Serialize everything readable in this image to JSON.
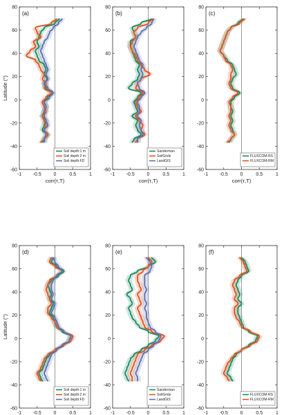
{
  "colors": {
    "green": "#1a8a5e",
    "orange": "#e0521f",
    "blue": "#5a6fb0"
  },
  "chart_data": [
    {
      "type": "line",
      "panel_label": "(a)",
      "xlabel": "corr(τ,T)",
      "ylabel": "Latitude (°)",
      "xlim": [
        -1,
        1
      ],
      "ylim": [
        -60,
        80
      ],
      "xticks": [
        "-1",
        "-0.5",
        "0",
        "0.5",
        "1"
      ],
      "yticks": [
        "-60",
        "-40",
        "-20",
        "0",
        "20",
        "40",
        "60",
        "80"
      ],
      "lat": [
        70,
        66,
        62,
        58,
        54,
        50,
        46,
        42,
        38,
        34,
        30,
        26,
        22,
        18,
        14,
        10,
        6,
        2,
        -2,
        -6,
        -10,
        -14,
        -18,
        -22,
        -26,
        -30,
        -34,
        -37
      ],
      "series": [
        {
          "name": "Soil depth:1 m",
          "color": "green",
          "x": [
            0.12,
            0.0,
            -0.3,
            -0.4,
            -0.45,
            -0.5,
            -0.45,
            -0.55,
            -0.5,
            -0.45,
            -0.3,
            -0.25,
            -0.3,
            -0.22,
            -0.3,
            -0.25,
            -0.1,
            -0.2,
            -0.3,
            -0.25,
            -0.3,
            -0.35,
            -0.25,
            -0.3,
            -0.35,
            -0.2,
            -0.3,
            -0.35
          ]
        },
        {
          "name": "Soil depth:2 m",
          "color": "orange",
          "x": [
            0.05,
            -0.1,
            -0.55,
            -0.5,
            -0.4,
            -0.6,
            -0.55,
            -0.7,
            -0.8,
            -0.55,
            -0.45,
            -0.4,
            -0.3,
            -0.35,
            -0.25,
            -0.3,
            -0.1,
            -0.25,
            -0.35,
            -0.3,
            -0.25,
            -0.35,
            -0.3,
            -0.25,
            -0.3,
            -0.2,
            -0.3,
            -0.4
          ]
        },
        {
          "name": "Soil depth:FD",
          "color": "blue",
          "x": [
            0.2,
            0.1,
            -0.05,
            -0.15,
            -0.2,
            -0.3,
            -0.35,
            -0.4,
            -0.35,
            -0.3,
            -0.25,
            -0.2,
            -0.25,
            -0.2,
            -0.3,
            -0.2,
            -0.05,
            -0.15,
            -0.3,
            -0.25,
            -0.3,
            -0.3,
            -0.25,
            -0.2,
            -0.3,
            -0.25,
            -0.3,
            -0.3
          ]
        }
      ],
      "legend_loc": "bottom-right"
    },
    {
      "type": "line",
      "panel_label": "(b)",
      "xlabel": "corr(τ,T)",
      "ylabel": "",
      "xlim": [
        -1,
        1
      ],
      "ylim": [
        -60,
        80
      ],
      "xticks": [
        "-1",
        "-0.5",
        "0",
        "0.5",
        "1"
      ],
      "yticks": [
        "-60",
        "-40",
        "-20",
        "0",
        "20",
        "40",
        "60",
        "80"
      ],
      "lat": [
        70,
        66,
        62,
        58,
        54,
        50,
        46,
        42,
        38,
        34,
        30,
        26,
        22,
        18,
        14,
        10,
        6,
        2,
        -2,
        -6,
        -10,
        -14,
        -18,
        -22,
        -26,
        -30,
        -34,
        -37
      ],
      "series": [
        {
          "name": "Sanderman",
          "color": "green",
          "x": [
            0.1,
            -0.2,
            -0.45,
            -0.4,
            -0.35,
            -0.5,
            -0.5,
            -0.45,
            -0.4,
            -0.35,
            -0.25,
            -0.3,
            -0.25,
            -0.3,
            -0.45,
            -0.55,
            -0.2,
            -0.3,
            -0.4,
            -0.35,
            -0.3,
            -0.45,
            -0.3,
            -0.35,
            -0.3,
            -0.2,
            -0.4,
            -0.45
          ]
        },
        {
          "name": "SoilGrids",
          "color": "orange",
          "x": [
            0.12,
            0.0,
            -0.3,
            -0.4,
            -0.35,
            -0.45,
            -0.5,
            -0.45,
            -0.35,
            -0.3,
            -0.2,
            -0.1,
            0.05,
            -0.2,
            -0.3,
            -0.35,
            -0.15,
            -0.25,
            -0.35,
            -0.3,
            -0.2,
            -0.35,
            -0.25,
            -0.15,
            -0.2,
            -0.1,
            -0.3,
            -0.35
          ]
        },
        {
          "name": "LandGIS",
          "color": "blue",
          "x": [
            0.15,
            0.1,
            -0.05,
            -0.2,
            -0.3,
            -0.35,
            -0.4,
            -0.35,
            -0.3,
            -0.25,
            -0.15,
            -0.2,
            -0.15,
            -0.2,
            -0.3,
            -0.25,
            -0.1,
            -0.2,
            -0.3,
            -0.25,
            -0.25,
            -0.3,
            -0.2,
            -0.25,
            -0.2,
            -0.15,
            -0.3,
            -0.3
          ]
        }
      ],
      "legend_loc": "bottom-right"
    },
    {
      "type": "line",
      "panel_label": "(c)",
      "xlabel": "corr(τ,T)",
      "ylabel": "",
      "xlim": [
        -1,
        1
      ],
      "ylim": [
        -60,
        80
      ],
      "xticks": [
        "-1",
        "-0.5",
        "0",
        "0.5",
        "1"
      ],
      "yticks": [
        "-60",
        "-40",
        "-20",
        "0",
        "20",
        "40",
        "60",
        "80"
      ],
      "lat": [
        70,
        66,
        62,
        58,
        54,
        50,
        46,
        42,
        38,
        34,
        30,
        26,
        22,
        18,
        14,
        10,
        6,
        2,
        -2,
        -6,
        -10,
        -14,
        -18,
        -22,
        -26,
        -30,
        -34,
        -37
      ],
      "series": [
        {
          "name": "FLUXCOM-RS",
          "color": "green",
          "x": [
            0.05,
            -0.1,
            -0.3,
            -0.4,
            -0.45,
            -0.5,
            -0.55,
            -0.6,
            -0.5,
            -0.4,
            -0.25,
            -0.2,
            -0.15,
            -0.25,
            -0.3,
            -0.25,
            -0.05,
            -0.2,
            -0.3,
            -0.3,
            -0.25,
            -0.3,
            -0.25,
            -0.3,
            -0.25,
            -0.2,
            -0.3,
            -0.35
          ]
        },
        {
          "name": "FLUXCOM-RM",
          "color": "orange",
          "x": [
            0.08,
            -0.05,
            -0.3,
            -0.4,
            -0.45,
            -0.5,
            -0.55,
            -0.6,
            -0.5,
            -0.45,
            -0.3,
            -0.25,
            -0.3,
            -0.3,
            -0.35,
            -0.3,
            -0.1,
            -0.25,
            -0.35,
            -0.3,
            -0.3,
            -0.35,
            -0.3,
            -0.35,
            -0.3,
            -0.2,
            -0.3,
            -0.4
          ]
        }
      ],
      "legend_loc": "bottom-right"
    },
    {
      "type": "line",
      "panel_label": "(d)",
      "xlabel": "corr(τ,P)",
      "ylabel": "Latitude (°)",
      "xlim": [
        -1,
        1
      ],
      "ylim": [
        -60,
        80
      ],
      "xticks": [
        "-1",
        "-0.5",
        "0",
        "0.5",
        "1"
      ],
      "yticks": [
        "-60",
        "-40",
        "-20",
        "0",
        "20",
        "40",
        "60",
        "80"
      ],
      "lat": [
        70,
        66,
        62,
        58,
        54,
        50,
        46,
        42,
        38,
        34,
        30,
        26,
        22,
        18,
        14,
        10,
        6,
        2,
        -2,
        -6,
        -10,
        -14,
        -18,
        -22,
        -26,
        -30,
        -34,
        -37
      ],
      "series": [
        {
          "name": "Soil depth:1 m",
          "color": "green",
          "x": [
            -0.05,
            -0.1,
            0.05,
            0.25,
            0.1,
            -0.1,
            -0.2,
            -0.15,
            -0.1,
            -0.15,
            -0.05,
            -0.1,
            -0.15,
            -0.05,
            0.0,
            0.05,
            0.2,
            0.45,
            0.4,
            0.2,
            0.0,
            -0.15,
            -0.25,
            -0.3,
            -0.35,
            -0.45,
            -0.4,
            -0.35
          ]
        },
        {
          "name": "Soil depth:2 m",
          "color": "orange",
          "x": [
            -0.1,
            -0.15,
            0.0,
            0.2,
            0.05,
            -0.15,
            -0.2,
            -0.25,
            -0.2,
            -0.15,
            -0.1,
            -0.2,
            -0.2,
            -0.1,
            0.0,
            0.05,
            0.25,
            0.5,
            0.45,
            0.25,
            0.0,
            -0.2,
            -0.3,
            -0.35,
            -0.4,
            -0.5,
            -0.45,
            -0.4
          ]
        },
        {
          "name": "Soil depth:FD",
          "color": "blue",
          "x": [
            -0.05,
            0.0,
            0.1,
            0.2,
            0.05,
            -0.05,
            -0.1,
            -0.1,
            -0.05,
            -0.1,
            0.0,
            -0.05,
            -0.1,
            0.0,
            0.05,
            0.1,
            0.25,
            0.45,
            0.4,
            0.2,
            0.05,
            -0.1,
            -0.15,
            -0.2,
            -0.25,
            -0.3,
            -0.25,
            -0.2
          ]
        }
      ],
      "legend_loc": "bottom-right"
    },
    {
      "type": "line",
      "panel_label": "(e)",
      "xlabel": "corr(τ,P)",
      "ylabel": "",
      "xlim": [
        -1,
        1
      ],
      "ylim": [
        -60,
        80
      ],
      "xticks": [
        "-1",
        "-0.5",
        "0",
        "0.5",
        "1"
      ],
      "yticks": [
        "-60",
        "-40",
        "-20",
        "0",
        "20",
        "40",
        "60",
        "80"
      ],
      "lat": [
        70,
        66,
        62,
        58,
        54,
        50,
        46,
        42,
        38,
        34,
        30,
        26,
        22,
        18,
        14,
        10,
        6,
        2,
        -2,
        -6,
        -10,
        -14,
        -18,
        -22,
        -26,
        -30,
        -34,
        -37
      ],
      "series": [
        {
          "name": "Sanderman",
          "color": "green",
          "x": [
            0.1,
            0.2,
            0.0,
            -0.3,
            -0.5,
            -0.55,
            -0.5,
            -0.45,
            -0.6,
            -0.5,
            -0.45,
            -0.55,
            -0.5,
            -0.45,
            -0.35,
            -0.25,
            0.0,
            0.3,
            0.2,
            0.0,
            -0.2,
            -0.4,
            -0.5,
            -0.55,
            -0.6,
            -0.65,
            -0.6,
            -0.55
          ]
        },
        {
          "name": "SoilGrids",
          "color": "orange",
          "x": [
            0.0,
            0.1,
            0.0,
            -0.15,
            -0.3,
            -0.3,
            -0.25,
            -0.2,
            -0.3,
            -0.25,
            -0.2,
            -0.3,
            -0.25,
            -0.2,
            -0.15,
            -0.1,
            0.1,
            0.45,
            0.35,
            0.1,
            -0.1,
            -0.3,
            -0.35,
            -0.4,
            -0.45,
            -0.5,
            -0.45,
            -0.45
          ]
        },
        {
          "name": "LandGIS",
          "color": "blue",
          "x": [
            -0.05,
            0.05,
            0.1,
            0.05,
            -0.1,
            -0.1,
            -0.1,
            -0.05,
            -0.1,
            -0.1,
            -0.05,
            -0.1,
            -0.05,
            -0.05,
            0.0,
            0.05,
            0.2,
            0.35,
            0.3,
            0.15,
            0.0,
            -0.15,
            -0.2,
            -0.25,
            -0.3,
            -0.35,
            -0.3,
            -0.3
          ]
        }
      ],
      "legend_loc": "bottom-right"
    },
    {
      "type": "line",
      "panel_label": "(f)",
      "xlabel": "corr(τ,P)",
      "ylabel": "",
      "xlim": [
        -1,
        1
      ],
      "ylim": [
        -60,
        80
      ],
      "xticks": [
        "-1",
        "-0.5",
        "0",
        "0.5",
        "1"
      ],
      "yticks": [
        "-60",
        "-40",
        "-20",
        "0",
        "20",
        "40",
        "60",
        "80"
      ],
      "lat": [
        70,
        66,
        62,
        58,
        54,
        50,
        46,
        42,
        38,
        34,
        30,
        26,
        22,
        18,
        14,
        10,
        6,
        2,
        -2,
        -6,
        -10,
        -14,
        -18,
        -22,
        -26,
        -30,
        -34,
        -37
      ],
      "series": [
        {
          "name": "FLUXCOM-RS",
          "color": "green",
          "x": [
            0.0,
            0.1,
            0.15,
            0.2,
            0.0,
            -0.1,
            -0.15,
            -0.1,
            -0.05,
            -0.1,
            0.0,
            -0.1,
            -0.1,
            -0.05,
            0.0,
            0.05,
            0.2,
            0.45,
            0.4,
            0.2,
            0.0,
            -0.15,
            -0.25,
            -0.3,
            -0.35,
            -0.4,
            -0.3,
            -0.25
          ]
        },
        {
          "name": "FLUXCOM-RM",
          "color": "orange",
          "x": [
            -0.05,
            0.05,
            0.1,
            0.15,
            -0.05,
            -0.2,
            -0.25,
            -0.2,
            -0.15,
            -0.2,
            -0.1,
            -0.2,
            -0.2,
            -0.15,
            -0.05,
            0.0,
            0.25,
            0.5,
            0.45,
            0.25,
            0.0,
            -0.2,
            -0.3,
            -0.4,
            -0.45,
            -0.5,
            -0.4,
            -0.35
          ]
        }
      ],
      "legend_loc": "bottom-right"
    }
  ]
}
